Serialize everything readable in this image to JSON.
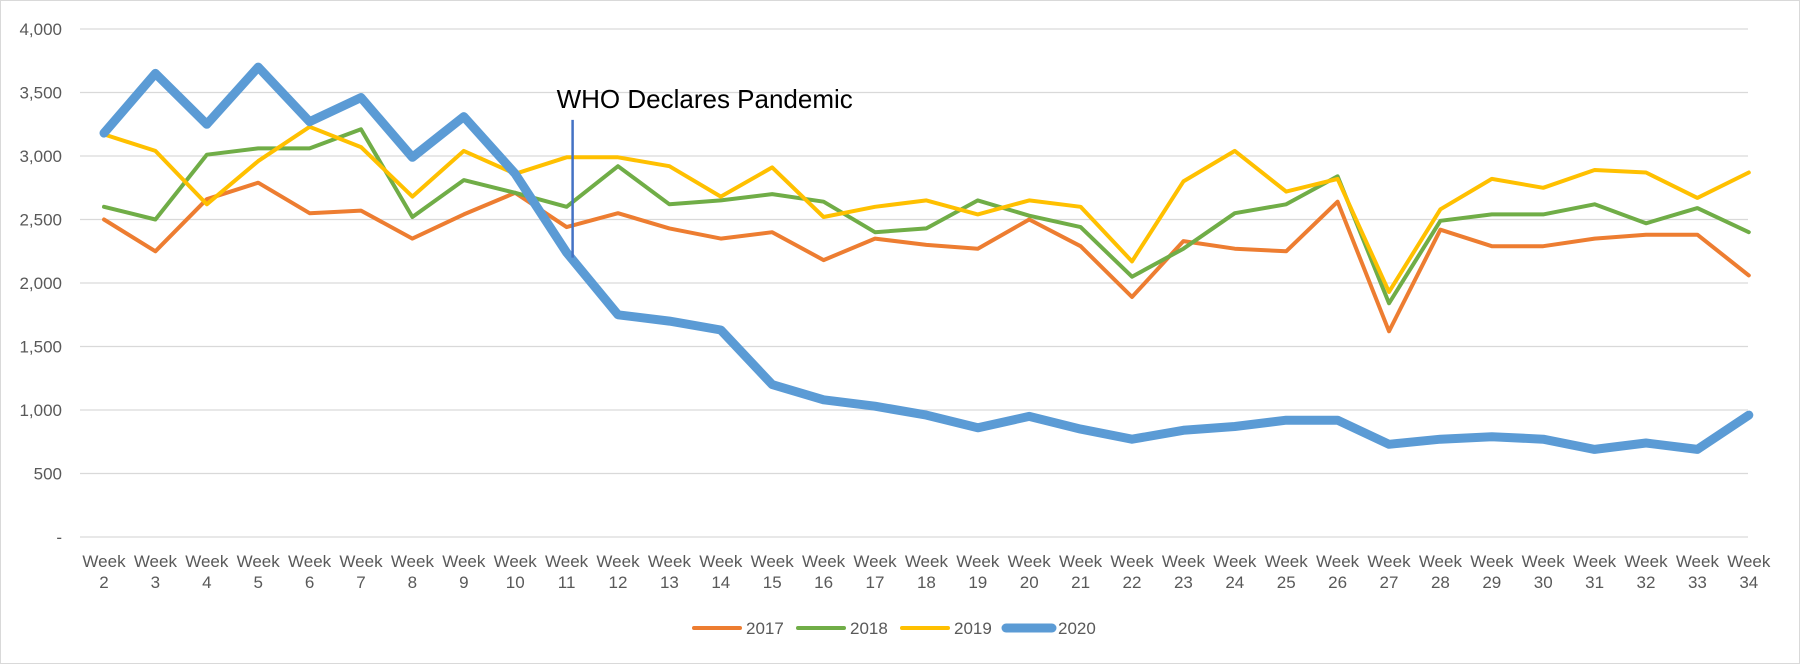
{
  "chart_data": {
    "type": "line",
    "title": "",
    "xlabel": "",
    "ylabel": "",
    "categories": [
      "Week 2",
      "Week 3",
      "Week 4",
      "Week 5",
      "Week 6",
      "Week 7",
      "Week 8",
      "Week 9",
      "Week 10",
      "Week 11",
      "Week 12",
      "Week 13",
      "Week 14",
      "Week 15",
      "Week 16",
      "Week 17",
      "Week 18",
      "Week 19",
      "Week 20",
      "Week 21",
      "Week 22",
      "Week 23",
      "Week 24",
      "Week 25",
      "Week 26",
      "Week 27",
      "Week 28",
      "Week 29",
      "Week 30",
      "Week 31",
      "Week 32",
      "Week 33",
      "Week 34"
    ],
    "ylim": [
      0,
      4000
    ],
    "yticks": [
      {
        "value": 0,
        "label": "-"
      },
      {
        "value": 500,
        "label": "500"
      },
      {
        "value": 1000,
        "label": "1,000"
      },
      {
        "value": 1500,
        "label": "1,500"
      },
      {
        "value": 2000,
        "label": "2,000"
      },
      {
        "value": 2500,
        "label": "2,500"
      },
      {
        "value": 3000,
        "label": "3,000"
      },
      {
        "value": 3500,
        "label": "3,500"
      },
      {
        "value": 4000,
        "label": "4,000"
      }
    ],
    "grid": "horizontal",
    "legend_position": "bottom",
    "series": [
      {
        "name": "2017",
        "color": "#ED7D31",
        "values": [
          2500,
          2250,
          2660,
          2790,
          2550,
          2570,
          2350,
          2540,
          2710,
          2440,
          2550,
          2430,
          2350,
          2400,
          2180,
          2350,
          2300,
          2270,
          2500,
          2290,
          1890,
          2330,
          2270,
          2250,
          2640,
          1620,
          2420,
          2290,
          2290,
          2350,
          2380,
          2380,
          2060
        ]
      },
      {
        "name": "2018",
        "color": "#70AD47",
        "values": [
          2600,
          2500,
          3010,
          3060,
          3060,
          3210,
          2520,
          2810,
          2710,
          2600,
          2920,
          2620,
          2650,
          2700,
          2640,
          2400,
          2430,
          2650,
          2530,
          2440,
          2050,
          2270,
          2550,
          2620,
          2840,
          1840,
          2490,
          2540,
          2540,
          2620,
          2470,
          2590,
          2400
        ]
      },
      {
        "name": "2019",
        "color": "#FFC000",
        "values": [
          3170,
          3040,
          2620,
          2960,
          3230,
          3070,
          2680,
          3040,
          2860,
          2990,
          2990,
          2920,
          2680,
          2910,
          2520,
          2600,
          2650,
          2540,
          2650,
          2600,
          2170,
          2800,
          3040,
          2720,
          2820,
          1930,
          2580,
          2820,
          2750,
          2890,
          2870,
          2670,
          2870
        ]
      },
      {
        "name": "2020",
        "color": "#5B9BD5",
        "values": [
          3180,
          3650,
          3250,
          3700,
          3270,
          3460,
          2990,
          3310,
          2860,
          2240,
          1750,
          1700,
          1630,
          1200,
          1080,
          1030,
          960,
          860,
          950,
          850,
          770,
          840,
          870,
          920,
          920,
          730,
          770,
          790,
          770,
          690,
          740,
          690,
          960
        ]
      }
    ],
    "annotations": [
      {
        "text": "WHO Declares Pandemic",
        "x": "Week 11",
        "y_from": 2200,
        "y_to": 3300,
        "color": "#4472C4"
      }
    ]
  }
}
